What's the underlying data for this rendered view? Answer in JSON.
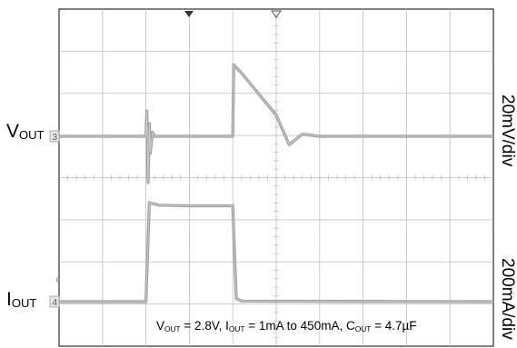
{
  "chart_data": {
    "type": "line",
    "grid": true,
    "divisions": {
      "x": 10,
      "y": 8
    },
    "ylabel_left": [
      {
        "text": "V",
        "sub": "OUT"
      },
      {
        "text": "I",
        "sub": "OUT"
      }
    ],
    "ylabel_right": [
      "20mV/div",
      "200mA/div"
    ],
    "annotation": [
      {
        "text": "V",
        "sub": "OUT"
      },
      {
        "text": " = 2.8V, "
      },
      {
        "text": "I",
        "sub": "OUT"
      },
      {
        "text": " = 1mA to 450mA, "
      },
      {
        "text": "C",
        "sub": "OUT"
      },
      {
        "text": " = 4.7µF"
      }
    ],
    "ground_markers": [
      "3",
      "4"
    ],
    "series": [
      {
        "unit_per_div": "20mV",
        "x": [
          0,
          2.0,
          2.02,
          2.05,
          2.08,
          2.1,
          2.15,
          2.2,
          4.0,
          4.02,
          4.2,
          5.0,
          5.3,
          5.6,
          6.0,
          10
        ],
        "y": [
          0,
          0,
          12,
          -22,
          6,
          -8,
          2,
          0,
          0,
          34,
          30,
          10,
          -4,
          1,
          0,
          0
        ]
      },
      {
        "unit_per_div": "200mA",
        "x": [
          0,
          2.0,
          2.08,
          2.3,
          3.0,
          4.0,
          4.08,
          4.2,
          10
        ],
        "y": [
          0,
          0,
          470,
          458,
          455,
          455,
          15,
          3,
          0
        ]
      }
    ]
  }
}
